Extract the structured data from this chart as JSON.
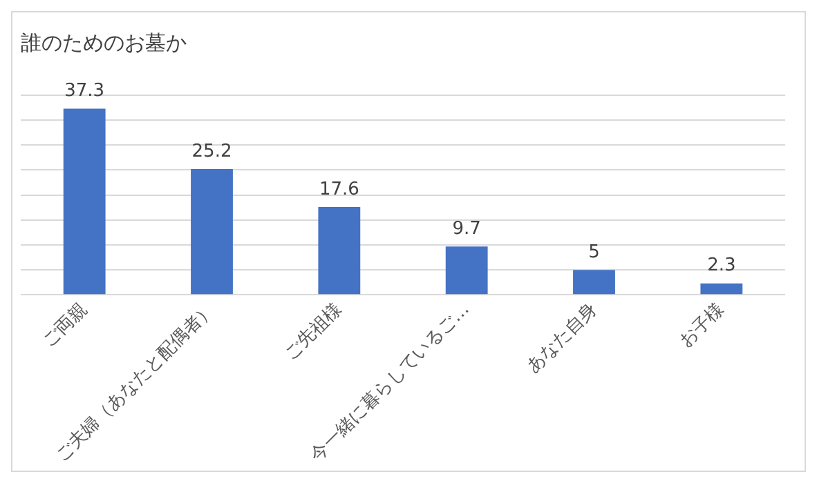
{
  "chart_data": {
    "type": "bar",
    "title": "誰のためのお墓か",
    "categories": [
      "ご両親",
      "ご夫婦（あなたと配偶者）",
      "ご先祖様",
      "今一緒に暮らしているご…",
      "あなた自身",
      "お子様"
    ],
    "values": [
      37.3,
      25.2,
      17.6,
      9.7,
      5,
      2.3
    ],
    "color": "#4472c4",
    "ylim": [
      0,
      40
    ],
    "yticks": [
      {
        "value": 0,
        "label": null
      },
      {
        "value": 5,
        "label": null
      },
      {
        "value": 10,
        "label": null
      },
      {
        "value": 15,
        "label": null
      },
      {
        "value": 20,
        "label": null
      },
      {
        "value": 25,
        "label": null
      },
      {
        "value": 30,
        "label": null
      },
      {
        "value": 35,
        "label": null
      },
      {
        "value": 40,
        "label": null
      }
    ],
    "tick_labels": "x",
    "grid": "y",
    "data_labels": true
  }
}
